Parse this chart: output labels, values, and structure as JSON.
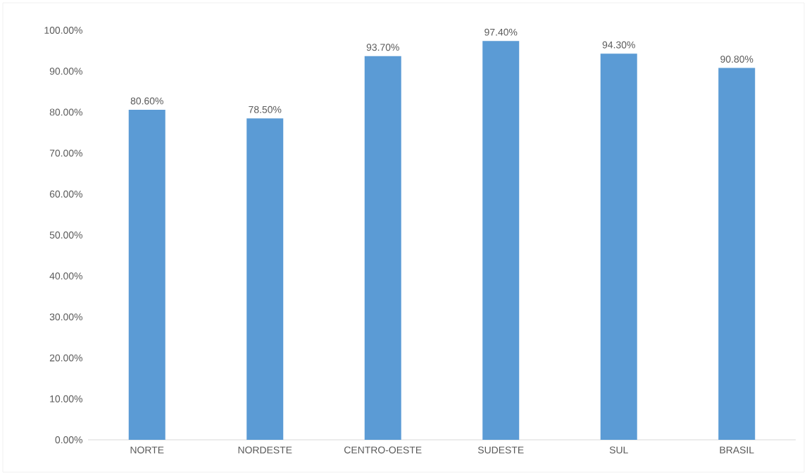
{
  "chart_data": {
    "type": "bar",
    "categories": [
      "NORTE",
      "NORDESTE",
      "CENTRO-OESTE",
      "SUDESTE",
      "SUL",
      "BRASIL"
    ],
    "values": [
      80.6,
      78.5,
      93.7,
      97.4,
      94.3,
      90.8
    ],
    "value_labels": [
      "80.60%",
      "78.50%",
      "93.70%",
      "97.40%",
      "94.30%",
      "90.80%"
    ],
    "color": "#5b9bd5",
    "ylim": [
      0,
      100
    ],
    "yticks": [
      {
        "value": 0,
        "label": "0.00%"
      },
      {
        "value": 10,
        "label": "10.00%"
      },
      {
        "value": 20,
        "label": "20.00%"
      },
      {
        "value": 30,
        "label": "30.00%"
      },
      {
        "value": 40,
        "label": "40.00%"
      },
      {
        "value": 50,
        "label": "50.00%"
      },
      {
        "value": 60,
        "label": "60.00%"
      },
      {
        "value": 70,
        "label": "70.00%"
      },
      {
        "value": 80,
        "label": "80.00%"
      },
      {
        "value": 90,
        "label": "90.00%"
      },
      {
        "value": 100,
        "label": "100.00%"
      }
    ],
    "grid": false
  }
}
